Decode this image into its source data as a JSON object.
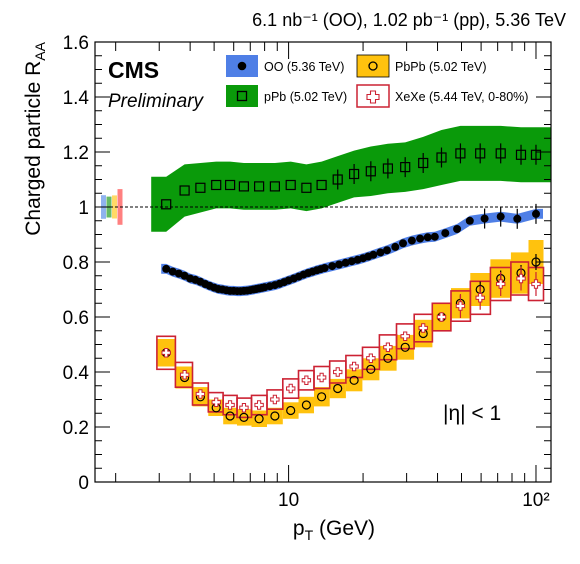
{
  "chart_data": {
    "type": "scatter",
    "header": "6.1 nb⁻¹ (OO), 1.02 pb⁻¹ (pp), 5.36 TeV",
    "experiment": "CMS",
    "status": "Preliminary",
    "xlabel": "p",
    "xlabel_sub": "T",
    "xlabel_unit": " (GeV)",
    "ylabel": "Charged particle R",
    "ylabel_sub": "AA",
    "annotation": "|η| < 1",
    "xscale": "log",
    "xlim": [
      1.65,
      115
    ],
    "ylim": [
      0,
      1.6
    ],
    "yticks": [
      0,
      0.2,
      0.4,
      0.6,
      0.8,
      1,
      1.2,
      1.4,
      1.6
    ],
    "ytick_labels": [
      "0",
      "0.2",
      "0.4",
      "0.6",
      "0.8",
      "1",
      "1.2",
      "1.4",
      "1.6"
    ],
    "xticks_major": [
      10,
      100
    ],
    "xtick_labels": [
      "10",
      "10²"
    ],
    "reference_line": 1,
    "grid": false,
    "legend_position": "top-right",
    "colors": {
      "oo": "#4f7fe6",
      "pb": "#ffc20e",
      "ppb": "#0a9a0a",
      "xexe": "#cc2233"
    },
    "norm_boxes": [
      {
        "color": "#8fb3ee",
        "lo": 0.957,
        "hi": 1.043
      },
      {
        "color": "#66bb66",
        "lo": 0.962,
        "hi": 1.038
      },
      {
        "color": "#ffd966",
        "lo": 0.958,
        "hi": 1.042
      },
      {
        "color": "#ff8080",
        "lo": 0.935,
        "hi": 1.065
      }
    ],
    "series": [
      {
        "name": "OO (5.36 TeV)",
        "x": [
          3.2,
          3.4,
          3.6,
          3.8,
          4.0,
          4.2,
          4.4,
          4.6,
          4.8,
          5.0,
          5.2,
          5.4,
          5.6,
          5.8,
          6.0,
          6.2,
          6.4,
          6.6,
          6.8,
          7.0,
          7.2,
          7.4,
          7.6,
          7.8,
          8.0,
          8.4,
          8.8,
          9.2,
          9.6,
          10,
          10.5,
          11,
          11.5,
          12,
          12.5,
          13,
          13.5,
          14,
          15,
          16,
          17,
          18,
          19,
          20,
          21,
          22,
          23.5,
          25,
          27,
          29,
          31.5,
          34,
          36.5,
          39,
          43,
          48,
          54,
          62,
          72,
          84,
          100
        ],
        "y": [
          0.775,
          0.765,
          0.758,
          0.75,
          0.74,
          0.735,
          0.728,
          0.72,
          0.713,
          0.707,
          0.702,
          0.7,
          0.697,
          0.695,
          0.695,
          0.694,
          0.694,
          0.695,
          0.696,
          0.698,
          0.7,
          0.702,
          0.704,
          0.706,
          0.708,
          0.712,
          0.716,
          0.721,
          0.727,
          0.733,
          0.74,
          0.747,
          0.754,
          0.76,
          0.765,
          0.77,
          0.774,
          0.778,
          0.785,
          0.791,
          0.797,
          0.803,
          0.808,
          0.814,
          0.82,
          0.826,
          0.835,
          0.843,
          0.855,
          0.868,
          0.878,
          0.885,
          0.89,
          0.892,
          0.905,
          0.92,
          0.95,
          0.958,
          0.965,
          0.957,
          0.975
        ],
        "syst": 0.018
      },
      {
        "name": "PbPb (5.02 TeV)",
        "x": [
          3.2,
          3.8,
          4.4,
          5.1,
          5.8,
          6.6,
          7.6,
          8.8,
          10.2,
          11.8,
          13.6,
          15.8,
          18.4,
          21.5,
          25.2,
          29.6,
          35.0,
          41.5,
          49.5,
          59.5,
          72,
          87,
          100
        ],
        "y": [
          0.47,
          0.38,
          0.31,
          0.27,
          0.24,
          0.235,
          0.23,
          0.24,
          0.26,
          0.28,
          0.31,
          0.34,
          0.37,
          0.41,
          0.45,
          0.49,
          0.54,
          0.6,
          0.65,
          0.7,
          0.74,
          0.76,
          0.8
        ],
        "syst": [
          0.05,
          0.04,
          0.035,
          0.03,
          0.03,
          0.03,
          0.03,
          0.03,
          0.03,
          0.03,
          0.035,
          0.035,
          0.04,
          0.04,
          0.045,
          0.045,
          0.05,
          0.05,
          0.055,
          0.06,
          0.07,
          0.075,
          0.08
        ]
      },
      {
        "name": "pPb (5.02 TeV)",
        "x": [
          3.2,
          3.8,
          4.4,
          5.1,
          5.8,
          6.6,
          7.6,
          8.8,
          10.2,
          11.8,
          13.6,
          15.8,
          18.4,
          21.5,
          25.2,
          29.6,
          35.0,
          41.5,
          49.5,
          59.5,
          72,
          87,
          100
        ],
        "y": [
          1.01,
          1.06,
          1.07,
          1.08,
          1.08,
          1.075,
          1.075,
          1.075,
          1.08,
          1.07,
          1.08,
          1.1,
          1.12,
          1.13,
          1.14,
          1.145,
          1.16,
          1.18,
          1.195,
          1.195,
          1.195,
          1.19,
          1.19
        ],
        "syst": [
          0.1,
          0.095,
          0.09,
          0.085,
          0.085,
          0.085,
          0.085,
          0.085,
          0.085,
          0.085,
          0.085,
          0.085,
          0.085,
          0.09,
          0.09,
          0.09,
          0.095,
          0.1,
          0.1,
          0.1,
          0.1,
          0.1,
          0.1
        ]
      },
      {
        "name": "XeXe (5.44 TeV, 0-80%)",
        "x": [
          3.2,
          3.8,
          4.4,
          5.1,
          5.8,
          6.6,
          7.6,
          8.8,
          10.2,
          11.8,
          13.6,
          15.8,
          18.4,
          21.5,
          25.2,
          29.6,
          35.0,
          41.5,
          49.5,
          59.5,
          72,
          87,
          100
        ],
        "y": [
          0.47,
          0.39,
          0.32,
          0.29,
          0.28,
          0.27,
          0.28,
          0.3,
          0.34,
          0.37,
          0.38,
          0.4,
          0.42,
          0.45,
          0.49,
          0.53,
          0.56,
          0.6,
          0.64,
          0.67,
          0.72,
          0.74,
          0.72
        ],
        "syst": [
          0.06,
          0.045,
          0.04,
          0.035,
          0.035,
          0.035,
          0.035,
          0.035,
          0.035,
          0.035,
          0.04,
          0.04,
          0.04,
          0.04,
          0.045,
          0.045,
          0.05,
          0.05,
          0.055,
          0.06,
          0.06,
          0.06,
          0.06
        ]
      }
    ]
  }
}
